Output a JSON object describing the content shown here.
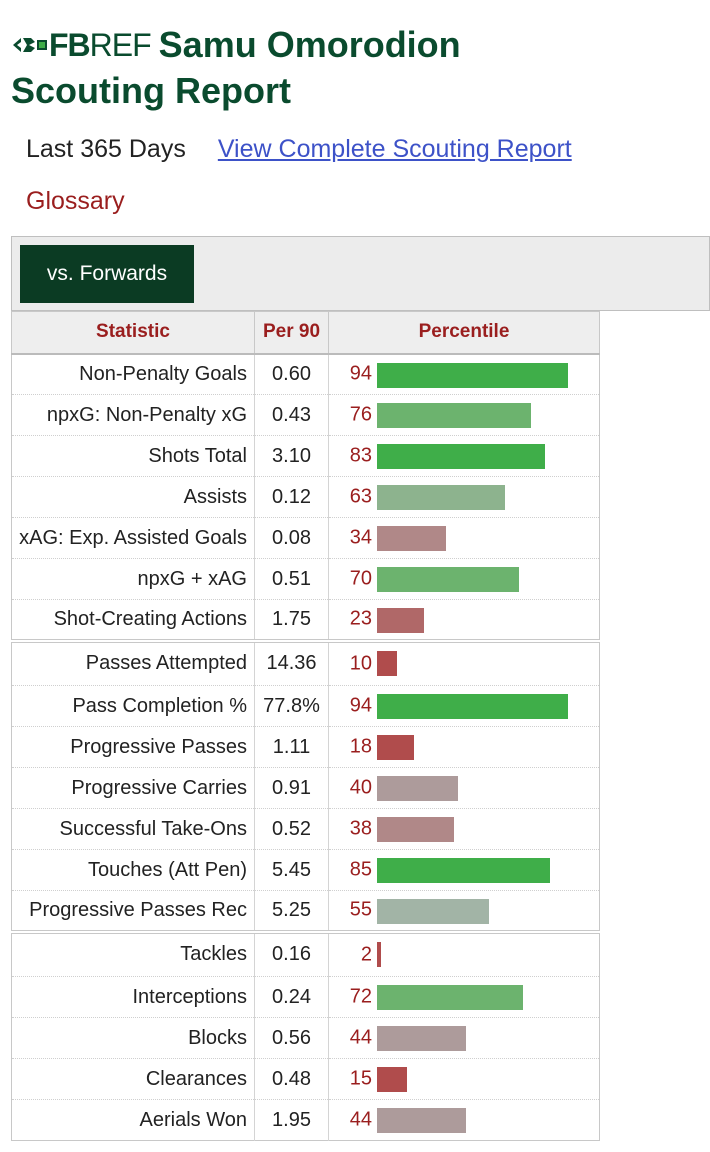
{
  "header": {
    "logo_fb": "FB",
    "logo_ref": "REF",
    "title_line1": "Samu Omorodion",
    "title_line2": "Scouting Report"
  },
  "links": {
    "period": "Last 365 Days",
    "complete_report": "View Complete Scouting Report",
    "glossary": "Glossary"
  },
  "filter": {
    "active_button": "vs. Forwards"
  },
  "table": {
    "columns": [
      "Statistic",
      "Per 90",
      "Percentile"
    ],
    "groups": [
      [
        {
          "stat": "Non-Penalty Goals",
          "per90": "0.60",
          "percentile": 94
        },
        {
          "stat": "npxG: Non-Penalty xG",
          "per90": "0.43",
          "percentile": 76
        },
        {
          "stat": "Shots Total",
          "per90": "3.10",
          "percentile": 83
        },
        {
          "stat": "Assists",
          "per90": "0.12",
          "percentile": 63
        },
        {
          "stat": "xAG: Exp. Assisted Goals",
          "per90": "0.08",
          "percentile": 34
        },
        {
          "stat": "npxG + xAG",
          "per90": "0.51",
          "percentile": 70
        },
        {
          "stat": "Shot-Creating Actions",
          "per90": "1.75",
          "percentile": 23
        }
      ],
      [
        {
          "stat": "Passes Attempted",
          "per90": "14.36",
          "percentile": 10
        },
        {
          "stat": "Pass Completion %",
          "per90": "77.8%",
          "percentile": 94
        },
        {
          "stat": "Progressive Passes",
          "per90": "1.11",
          "percentile": 18
        },
        {
          "stat": "Progressive Carries",
          "per90": "0.91",
          "percentile": 40
        },
        {
          "stat": "Successful Take-Ons",
          "per90": "0.52",
          "percentile": 38
        },
        {
          "stat": "Touches (Att Pen)",
          "per90": "5.45",
          "percentile": 85
        },
        {
          "stat": "Progressive Passes Rec",
          "per90": "5.25",
          "percentile": 55
        }
      ],
      [
        {
          "stat": "Tackles",
          "per90": "0.16",
          "percentile": 2
        },
        {
          "stat": "Interceptions",
          "per90": "0.24",
          "percentile": 72
        },
        {
          "stat": "Blocks",
          "per90": "0.56",
          "percentile": 44
        },
        {
          "stat": "Clearances",
          "per90": "0.48",
          "percentile": 15
        },
        {
          "stat": "Aerials Won",
          "per90": "1.95",
          "percentile": 44
        }
      ]
    ]
  },
  "colors": {
    "title_green": "#0a4b2e",
    "button_bg": "#0b3b23",
    "header_red": "#9a1e1e",
    "link_blue": "#3d52c8"
  }
}
